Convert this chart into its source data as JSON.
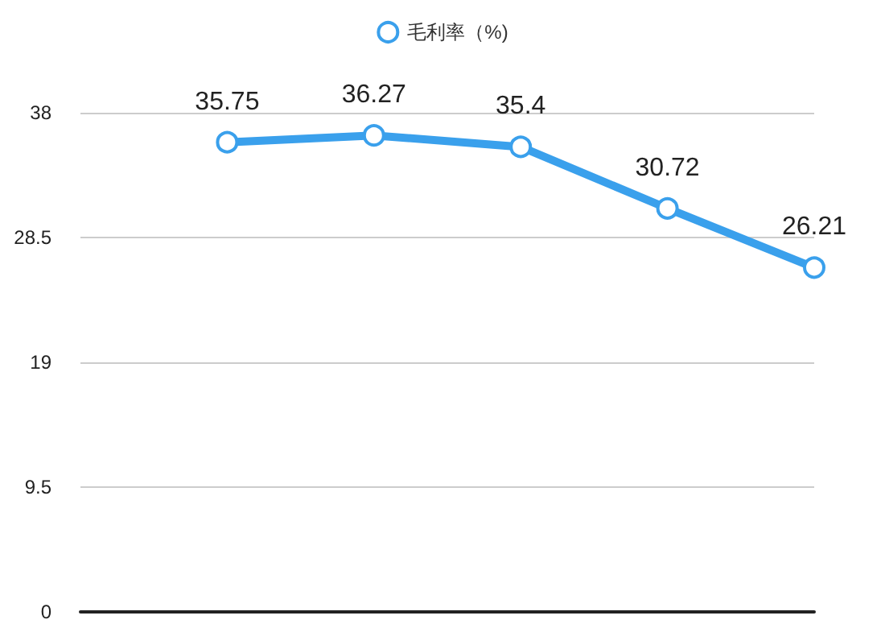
{
  "chart_data": {
    "type": "line",
    "categories": [
      null,
      null,
      null,
      null,
      null,
      null
    ],
    "series": [
      {
        "name": "毛利率（%)",
        "color": "#3aa0ec",
        "values": [
          null,
          35.75,
          36.27,
          35.4,
          30.72,
          26.21
        ]
      }
    ],
    "ylim": [
      0,
      38
    ],
    "yticks": [
      0,
      9.5,
      19,
      28.5,
      38
    ],
    "grid": "y",
    "legend": "top",
    "marker": "circle",
    "data_labels": true
  }
}
